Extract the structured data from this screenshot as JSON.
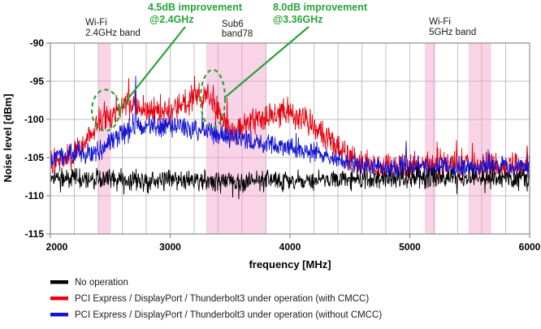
{
  "colors": {
    "no_operation": "#000000",
    "with_cmcc": "#e8000d",
    "without_cmcc": "#1414d2",
    "annotation_green": "#28a338",
    "band_pink": "rgba(242,158,200,0.45)",
    "grid": "#bfbfbf",
    "border": "#8c8c8c",
    "text": "#000000"
  },
  "chart_data": {
    "type": "line",
    "title": "",
    "xlabel": "frequency [MHz]",
    "ylabel": "Noise level [dBm]",
    "xlim": [
      2000,
      6000
    ],
    "ylim": [
      -115,
      -90
    ],
    "x_ticks": [
      2000,
      3000,
      4000,
      5000,
      6000
    ],
    "y_ticks": [
      -90,
      -95,
      -100,
      -105,
      -110,
      -115
    ],
    "minor_grid_step_mhz": 200,
    "grid": true,
    "legend_position": "bottom-left",
    "envelope_x_mhz": [
      2000,
      2100,
      2200,
      2300,
      2400,
      2500,
      2600,
      2700,
      2800,
      2900,
      3000,
      3100,
      3200,
      3300,
      3400,
      3500,
      3600,
      3700,
      3800,
      3900,
      4000,
      4100,
      4200,
      4300,
      4400,
      4500,
      4600,
      4700,
      4800,
      4900,
      5000,
      5100,
      5200,
      5300,
      5400,
      5500,
      5600,
      5700,
      5800,
      5900,
      6000
    ],
    "series": [
      {
        "name": "PCI Express / DisplayPort / Thunderbolt3 under operation (with CMCC)",
        "color_key": "with_cmcc",
        "noise_db": 2.2,
        "envelope_dbm": [
          -105.3,
          -105.0,
          -104.6,
          -103.0,
          -100.3,
          -99.6,
          -97.8,
          -98.2,
          -98.8,
          -99.2,
          -98.8,
          -98.4,
          -96.9,
          -97.3,
          -99.0,
          -101.6,
          -101.0,
          -100.4,
          -100.0,
          -99.3,
          -99.1,
          -99.9,
          -101.0,
          -102.4,
          -103.9,
          -105.2,
          -105.9,
          -106.2,
          -106.3,
          -106.2,
          -106.3,
          -106.2,
          -106.3,
          -106.2,
          -106.3,
          -106.1,
          -106.0,
          -106.2,
          -106.1,
          -106.2,
          -106.0
        ],
        "spikes": [
          [
            2450,
            -97.6
          ],
          [
            2655,
            -94.6
          ],
          [
            3205,
            -94.3
          ],
          [
            3240,
            -95.2
          ],
          [
            3360,
            -95.5
          ],
          [
            5390,
            -102.7
          ],
          [
            5980,
            -103.4
          ]
        ]
      },
      {
        "name": "PCI Express / DisplayPort / Thunderbolt3 under operation (without CMCC)",
        "color_key": "without_cmcc",
        "noise_db": 1.7,
        "envelope_dbm": [
          -105.1,
          -104.9,
          -104.7,
          -104.4,
          -104.2,
          -103.2,
          -102.0,
          -101.0,
          -100.8,
          -100.8,
          -100.9,
          -101.0,
          -101.2,
          -101.5,
          -102.0,
          -102.4,
          -102.7,
          -102.9,
          -103.1,
          -103.3,
          -103.5,
          -103.8,
          -104.2,
          -104.7,
          -105.2,
          -105.7,
          -106.1,
          -106.3,
          -106.3,
          -106.2,
          -106.3,
          -106.3,
          -106.3,
          -106.2,
          -106.3,
          -106.2,
          -106.1,
          -106.3,
          -106.2,
          -106.3,
          -106.1
        ],
        "spikes": [
          [
            2712,
            -94.3
          ],
          [
            4970,
            -102.8
          ]
        ]
      },
      {
        "name": "No operation",
        "color_key": "no_operation",
        "noise_db": 1.6,
        "envelope_dbm": [
          -107.6,
          -107.7,
          -107.7,
          -107.8,
          -107.8,
          -107.9,
          -107.8,
          -107.9,
          -108.0,
          -107.9,
          -108.0,
          -107.9,
          -108.0,
          -107.9,
          -108.0,
          -108.0,
          -107.9,
          -108.0,
          -107.9,
          -108.0,
          -107.9,
          -108.0,
          -107.9,
          -107.9,
          -107.8,
          -107.8,
          -107.7,
          -107.7,
          -107.7,
          -107.6,
          -107.7,
          -107.6,
          -107.7,
          -107.6,
          -107.7,
          -107.6,
          -107.6,
          -107.7,
          -107.6,
          -107.7,
          -107.6
        ],
        "spikes": []
      }
    ],
    "legend_order": [
      "No operation",
      "PCI Express / DisplayPort / Thunderbolt3 under operation (with CMCC)",
      "PCI Express / DisplayPort / Thunderbolt3 under operation (without CMCC)"
    ],
    "bands": [
      {
        "from_mhz": 2400,
        "to_mhz": 2505,
        "label_lines": [
          "Wi-Fi",
          "2.4GHz band"
        ],
        "label_x_mhz": 2292
      },
      {
        "from_mhz": 3300,
        "to_mhz": 3800,
        "label_lines": [
          "Sub6",
          "band78"
        ],
        "label_x_mhz": 3430
      },
      {
        "from_mhz": 5125,
        "to_mhz": 5215,
        "label_lines": [
          "Wi-Fi",
          "5GHz band"
        ],
        "label_x_mhz": 5160
      },
      {
        "from_mhz": 5490,
        "to_mhz": 5680,
        "label_lines": [],
        "label_x_mhz": null
      }
    ],
    "annotations": [
      {
        "lines": [
          "4.5dB improvement",
          "@2.4GHz"
        ],
        "target_mhz": 2461,
        "target_dbm": -98.8
      },
      {
        "lines": [
          "8.0dB improvement",
          "@3.36GHz"
        ],
        "target_mhz": 3356,
        "target_dbm": -97.3
      }
    ],
    "highlight_ellipses": [
      {
        "center_mhz": 2461,
        "center_dbm": -98.8,
        "rx_mhz": 115,
        "ry_db": 2.7
      },
      {
        "center_mhz": 3356,
        "center_dbm": -97.3,
        "rx_mhz": 102,
        "ry_db": 3.8
      }
    ]
  }
}
